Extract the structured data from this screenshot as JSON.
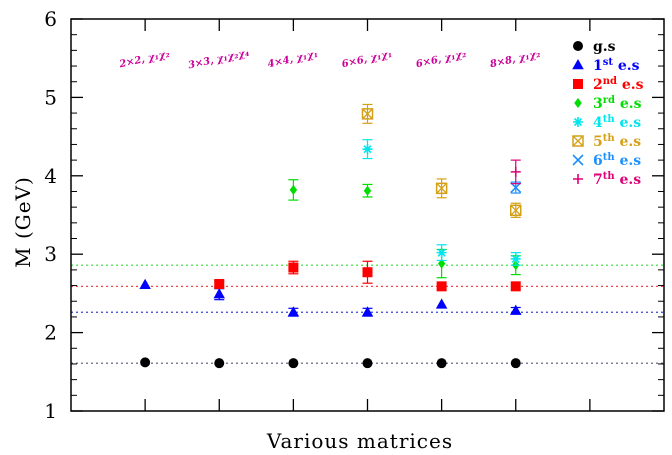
{
  "chart_data": {
    "type": "scatter",
    "title": "",
    "xlabel": "Various matrices",
    "ylabel": "M (GeV)",
    "ylim": [
      1,
      6
    ],
    "xlim": [
      0,
      8
    ],
    "y_ticks": [
      "1",
      "2",
      "3",
      "4",
      "5",
      "6"
    ],
    "grid": false,
    "legend_position": "top-right",
    "matrix_labels": [
      {
        "x": 1,
        "text": "2×2, χ₁χ₂"
      },
      {
        "x": 2,
        "text": "3×3, χ₁χ₂χ₄"
      },
      {
        "x": 3,
        "text": "4×4, χ₁χ₁"
      },
      {
        "x": 4,
        "text": "6×6, χ₁χ₁"
      },
      {
        "x": 5,
        "text": "6×6, χ₁χ₂"
      },
      {
        "x": 6,
        "text": "8×8, χ₁χ₂"
      }
    ],
    "reference_lines": [
      {
        "y": 1.61,
        "color": "#555577"
      },
      {
        "y": 2.26,
        "color": "#3344cc"
      },
      {
        "y": 2.59,
        "color": "#ee4444"
      },
      {
        "y": 2.86,
        "color": "#33dd33"
      }
    ],
    "series": [
      {
        "name": "g.s",
        "marker": "circle",
        "color": "#000000",
        "points": [
          {
            "x": 1,
            "y": 1.62,
            "err": 0
          },
          {
            "x": 2,
            "y": 1.61,
            "err": 0
          },
          {
            "x": 3,
            "y": 1.61,
            "err": 0
          },
          {
            "x": 4,
            "y": 1.61,
            "err": 0
          },
          {
            "x": 5,
            "y": 1.61,
            "err": 0
          },
          {
            "x": 6,
            "y": 1.61,
            "err": 0
          }
        ]
      },
      {
        "name": "1st e.s",
        "marker": "triangle",
        "color": "#0000ff",
        "points": [
          {
            "x": 1,
            "y": 2.61,
            "err": 0
          },
          {
            "x": 2,
            "y": 2.49,
            "err": 0.07
          },
          {
            "x": 3,
            "y": 2.26,
            "err": 0.05
          },
          {
            "x": 4,
            "y": 2.26,
            "err": 0.05
          },
          {
            "x": 5,
            "y": 2.36,
            "err": 0
          },
          {
            "x": 6,
            "y": 2.28,
            "err": 0.04
          }
        ]
      },
      {
        "name": "2nd e.s",
        "marker": "square",
        "color": "#ff0000",
        "points": [
          {
            "x": 2,
            "y": 2.62,
            "err": 0.04
          },
          {
            "x": 3,
            "y": 2.83,
            "err": 0.08
          },
          {
            "x": 4,
            "y": 2.77,
            "err": 0.14
          },
          {
            "x": 5,
            "y": 2.59,
            "err": 0
          },
          {
            "x": 6,
            "y": 2.59,
            "err": 0
          }
        ]
      },
      {
        "name": "3rd e.s",
        "marker": "diamond",
        "color": "#00dd00",
        "points": [
          {
            "x": 3,
            "y": 3.82,
            "err": 0.13
          },
          {
            "x": 4,
            "y": 3.81,
            "err": 0.08
          },
          {
            "x": 5,
            "y": 2.88,
            "err": 0.18
          },
          {
            "x": 6,
            "y": 2.86,
            "err": 0.12
          }
        ]
      },
      {
        "name": "4th e.s",
        "marker": "asterisk",
        "color": "#00e5ee",
        "points": [
          {
            "x": 4,
            "y": 4.34,
            "err": 0.12
          },
          {
            "x": 5,
            "y": 3.02,
            "err": 0.1
          },
          {
            "x": 6,
            "y": 2.94,
            "err": 0.08
          }
        ]
      },
      {
        "name": "5th e.s",
        "marker": "boxx",
        "color": "#d4a017",
        "points": [
          {
            "x": 4,
            "y": 4.79,
            "err": 0.12
          },
          {
            "x": 5,
            "y": 3.84,
            "err": 0.12
          },
          {
            "x": 6,
            "y": 3.56,
            "err": 0.09
          }
        ]
      },
      {
        "name": "6th e.s",
        "marker": "cross",
        "color": "#1e90ff",
        "points": [
          {
            "x": 6,
            "y": 3.85,
            "err": 0.07
          }
        ]
      },
      {
        "name": "7th e.s",
        "marker": "plus",
        "color": "#dd0077",
        "points": [
          {
            "x": 6,
            "y": 4.05,
            "err": 0.15
          }
        ]
      }
    ],
    "legend": [
      {
        "base": "g.s",
        "sup": "",
        "suffix": "",
        "color": "#000000",
        "marker": "circle"
      },
      {
        "base": "1",
        "sup": "st",
        "suffix": " e.s",
        "color": "#0000ff",
        "marker": "triangle"
      },
      {
        "base": "2",
        "sup": "nd",
        "suffix": " e.s",
        "color": "#ff0000",
        "marker": "square"
      },
      {
        "base": "3",
        "sup": "rd",
        "suffix": " e.s",
        "color": "#00dd00",
        "marker": "diamond"
      },
      {
        "base": "4",
        "sup": "th",
        "suffix": " e.s",
        "color": "#00e5ee",
        "marker": "asterisk"
      },
      {
        "base": "5",
        "sup": "th",
        "suffix": " e.s",
        "color": "#d4a017",
        "marker": "boxx"
      },
      {
        "base": "6",
        "sup": "th",
        "suffix": " e.s",
        "color": "#1e90ff",
        "marker": "cross"
      },
      {
        "base": "7",
        "sup": "th",
        "suffix": " e.s",
        "color": "#dd0077",
        "marker": "plus"
      }
    ]
  }
}
